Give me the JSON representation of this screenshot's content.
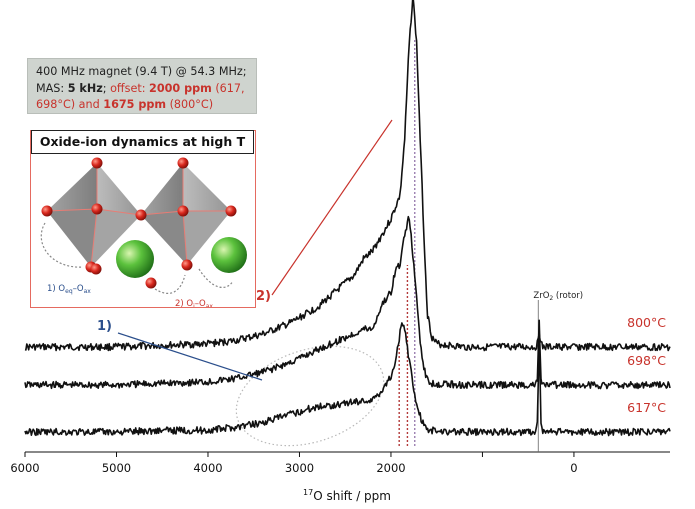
{
  "info_box": {
    "line1": "400 MHz magnet (9.4 T) @ 54.3 MHz;",
    "line2a": "MAS: ",
    "line2b": "5 kHz",
    "line2c": "; ",
    "line2d": "offset: ",
    "line2e": "2000 ppm",
    "line2f": " (617,",
    "line3a": "698°C) and ",
    "line3b": "1675 ppm",
    "line3c": " (800°C)"
  },
  "inset": {
    "title": "Oxide-ion dynamics at high T",
    "label1": "1) O",
    "label1_sub1": "eq",
    "label1_mid": "–O",
    "label1_sub2": "ax",
    "label2": "2) O",
    "label2_sub1": "i",
    "label2_mid": "–O",
    "label2_sub2": "ax"
  },
  "annotations": {
    "marker1": "1)",
    "marker2": "2)",
    "zro2_label": "ZrO",
    "zro2_sub": "2",
    "zro2_suffix": " (rotor)"
  },
  "colors": {
    "spectrum": "#111111",
    "accent_red": "#c8332c",
    "accent_blue": "#2b4f8c",
    "octahedron": "#8c8c8c",
    "oxygen": "#d9281e",
    "cation": "#4caf3a",
    "marker_red": "#b33a3a",
    "marker_purple": "#9b7fb0"
  },
  "chart_data": {
    "type": "line",
    "title": "",
    "xlabel_prefix": "17",
    "xlabel": "O shift / ppm",
    "ylabel": "",
    "xlim": [
      6000,
      -1050
    ],
    "x_reversed": true,
    "x_ticks": [
      6000,
      5000,
      4000,
      3000,
      2000,
      1000,
      0
    ],
    "x_tick_labels": [
      "6000",
      "5000",
      "4000",
      "3000",
      "2000",
      "",
      "0"
    ],
    "series": [
      {
        "name": "800°C",
        "points": [
          [
            6000,
            0
          ],
          [
            5000,
            0
          ],
          [
            4500,
            1
          ],
          [
            4000,
            2
          ],
          [
            3700,
            4
          ],
          [
            3400,
            8
          ],
          [
            3100,
            15
          ],
          [
            2800,
            25
          ],
          [
            2600,
            35
          ],
          [
            2400,
            45
          ],
          [
            2300,
            55
          ],
          [
            2200,
            60
          ],
          [
            2100,
            70
          ],
          [
            2000,
            80
          ],
          [
            1900,
            95
          ],
          [
            1850,
            130
          ],
          [
            1800,
            190
          ],
          [
            1760,
            220
          ],
          [
            1720,
            190
          ],
          [
            1680,
            130
          ],
          [
            1640,
            70
          ],
          [
            1600,
            20
          ],
          [
            1550,
            6
          ],
          [
            1500,
            2
          ],
          [
            1200,
            0
          ],
          [
            420,
            0
          ],
          [
            400,
            2
          ],
          [
            380,
            10
          ],
          [
            360,
            2
          ],
          [
            340,
            0
          ],
          [
            -1050,
            0
          ]
        ]
      },
      {
        "name": "698°C",
        "points": [
          [
            6000,
            0
          ],
          [
            5000,
            0
          ],
          [
            4500,
            1
          ],
          [
            4000,
            2
          ],
          [
            3700,
            4
          ],
          [
            3400,
            8
          ],
          [
            3100,
            14
          ],
          [
            2800,
            22
          ],
          [
            2600,
            27
          ],
          [
            2400,
            32
          ],
          [
            2300,
            35
          ],
          [
            2200,
            35
          ],
          [
            2100,
            50
          ],
          [
            2000,
            58
          ],
          [
            1950,
            72
          ],
          [
            1900,
            75
          ],
          [
            1850,
            95
          ],
          [
            1800,
            105
          ],
          [
            1760,
            80
          ],
          [
            1720,
            55
          ],
          [
            1680,
            28
          ],
          [
            1640,
            10
          ],
          [
            1600,
            3
          ],
          [
            1550,
            1
          ],
          [
            1200,
            0
          ],
          [
            420,
            0
          ],
          [
            400,
            3
          ],
          [
            380,
            40
          ],
          [
            360,
            3
          ],
          [
            340,
            0
          ],
          [
            -1050,
            0
          ]
        ]
      },
      {
        "name": "617°C",
        "points": [
          [
            6000,
            0
          ],
          [
            5000,
            0
          ],
          [
            4500,
            1
          ],
          [
            4000,
            1
          ],
          [
            3700,
            3
          ],
          [
            3400,
            6
          ],
          [
            3100,
            11
          ],
          [
            2800,
            16
          ],
          [
            2600,
            17
          ],
          [
            2400,
            19
          ],
          [
            2200,
            20
          ],
          [
            2100,
            26
          ],
          [
            2000,
            35
          ],
          [
            1950,
            45
          ],
          [
            1900,
            62
          ],
          [
            1870,
            68
          ],
          [
            1840,
            60
          ],
          [
            1800,
            45
          ],
          [
            1760,
            30
          ],
          [
            1720,
            18
          ],
          [
            1680,
            10
          ],
          [
            1640,
            4
          ],
          [
            1600,
            1
          ],
          [
            1200,
            0
          ],
          [
            420,
            0
          ],
          [
            400,
            5
          ],
          [
            380,
            60
          ],
          [
            360,
            5
          ],
          [
            340,
            0
          ],
          [
            -1050,
            0
          ]
        ]
      }
    ],
    "peak_markers_ppm": [
      1910,
      1820,
      1740
    ],
    "zro2_line_ppm": 390
  }
}
